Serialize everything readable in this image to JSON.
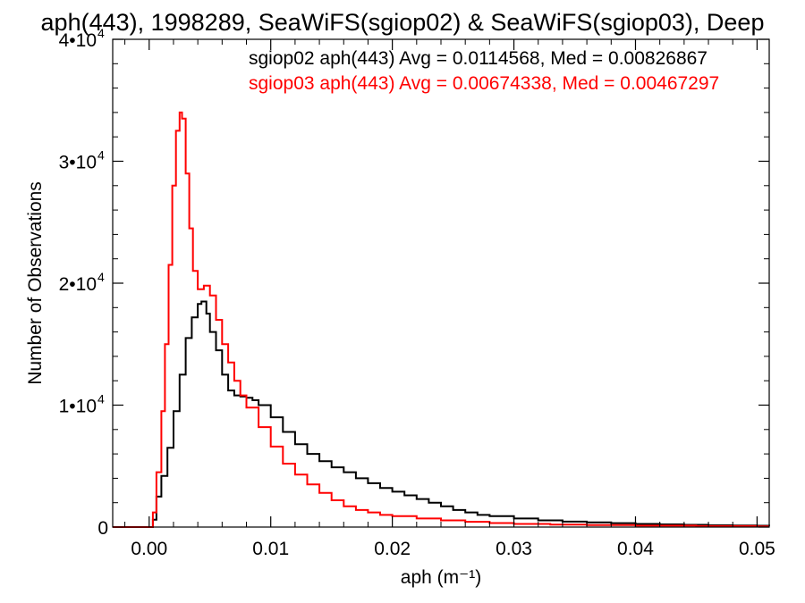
{
  "chart_data": {
    "type": "line",
    "title": "aph(443), 1998289, SeaWiFS(sgiop02) & SeaWiFS(sgiop03), Deep",
    "xlabel": "aph (m⁻¹)",
    "ylabel": "Number of Observations",
    "xlim": [
      -0.003,
      0.051
    ],
    "ylim": [
      0,
      40000
    ],
    "x_ticks": [
      {
        "value": 0.0,
        "label": "0.00"
      },
      {
        "value": 0.01,
        "label": "0.01"
      },
      {
        "value": 0.02,
        "label": "0.02"
      },
      {
        "value": 0.03,
        "label": "0.03"
      },
      {
        "value": 0.04,
        "label": "0.04"
      },
      {
        "value": 0.05,
        "label": "0.05"
      }
    ],
    "y_ticks": [
      {
        "value": 0,
        "label": "0",
        "exp": ""
      },
      {
        "value": 10000,
        "label": "1•10",
        "exp": "4"
      },
      {
        "value": 20000,
        "label": "2•10",
        "exp": "4"
      },
      {
        "value": 30000,
        "label": "3•10",
        "exp": "4"
      },
      {
        "value": 40000,
        "label": "4•10",
        "exp": "4"
      }
    ],
    "grid": false,
    "legend_position": "top-right",
    "series": [
      {
        "name": "sgiop02 aph(443) Avg = 0.0114568, Med = 0.00826867",
        "color": "#000000",
        "points": [
          [
            -0.003,
            0
          ],
          [
            0.0,
            0
          ],
          [
            0.0003,
            600
          ],
          [
            0.0006,
            2500
          ],
          [
            0.001,
            4200
          ],
          [
            0.0015,
            6500
          ],
          [
            0.002,
            9500
          ],
          [
            0.0025,
            12500
          ],
          [
            0.003,
            15500
          ],
          [
            0.0035,
            17200
          ],
          [
            0.004,
            18300
          ],
          [
            0.0043,
            18500
          ],
          [
            0.0047,
            17500
          ],
          [
            0.005,
            16000
          ],
          [
            0.0055,
            14500
          ],
          [
            0.006,
            12500
          ],
          [
            0.0065,
            11200
          ],
          [
            0.007,
            10800
          ],
          [
            0.0075,
            10700
          ],
          [
            0.008,
            10600
          ],
          [
            0.0085,
            10400
          ],
          [
            0.009,
            10000
          ],
          [
            0.01,
            9000
          ],
          [
            0.011,
            7800
          ],
          [
            0.012,
            6800
          ],
          [
            0.013,
            6000
          ],
          [
            0.014,
            5400
          ],
          [
            0.015,
            4900
          ],
          [
            0.016,
            4500
          ],
          [
            0.017,
            4000
          ],
          [
            0.018,
            3600
          ],
          [
            0.019,
            3200
          ],
          [
            0.02,
            2900
          ],
          [
            0.021,
            2600
          ],
          [
            0.022,
            2300
          ],
          [
            0.023,
            2000
          ],
          [
            0.024,
            1700
          ],
          [
            0.025,
            1400
          ],
          [
            0.026,
            1200
          ],
          [
            0.027,
            1000
          ],
          [
            0.028,
            900
          ],
          [
            0.03,
            700
          ],
          [
            0.032,
            550
          ],
          [
            0.034,
            450
          ],
          [
            0.036,
            380
          ],
          [
            0.038,
            320
          ],
          [
            0.04,
            260
          ],
          [
            0.042,
            220
          ],
          [
            0.044,
            180
          ],
          [
            0.046,
            150
          ],
          [
            0.048,
            130
          ],
          [
            0.05,
            110
          ],
          [
            0.051,
            100
          ]
        ]
      },
      {
        "name": "sgiop03 aph(443) Avg = 0.00674338, Med = 0.00467297",
        "color": "#ff0000",
        "points": [
          [
            -0.003,
            0
          ],
          [
            0.0,
            0
          ],
          [
            0.0003,
            1200
          ],
          [
            0.0006,
            4500
          ],
          [
            0.001,
            9500
          ],
          [
            0.0013,
            15000
          ],
          [
            0.0016,
            21500
          ],
          [
            0.0019,
            28000
          ],
          [
            0.0022,
            32500
          ],
          [
            0.0025,
            34000
          ],
          [
            0.0027,
            33500
          ],
          [
            0.003,
            29000
          ],
          [
            0.0033,
            24500
          ],
          [
            0.0036,
            21000
          ],
          [
            0.004,
            19500
          ],
          [
            0.0045,
            19800
          ],
          [
            0.005,
            19000
          ],
          [
            0.0055,
            17000
          ],
          [
            0.006,
            15000
          ],
          [
            0.0065,
            13500
          ],
          [
            0.007,
            12000
          ],
          [
            0.0075,
            10800
          ],
          [
            0.008,
            9800
          ],
          [
            0.009,
            8200
          ],
          [
            0.01,
            6600
          ],
          [
            0.011,
            5200
          ],
          [
            0.012,
            4300
          ],
          [
            0.013,
            3500
          ],
          [
            0.014,
            2800
          ],
          [
            0.015,
            2200
          ],
          [
            0.016,
            1700
          ],
          [
            0.017,
            1400
          ],
          [
            0.018,
            1200
          ],
          [
            0.019,
            1000
          ],
          [
            0.02,
            900
          ],
          [
            0.022,
            700
          ],
          [
            0.024,
            550
          ],
          [
            0.026,
            430
          ],
          [
            0.028,
            330
          ],
          [
            0.03,
            260
          ],
          [
            0.033,
            200
          ],
          [
            0.036,
            160
          ],
          [
            0.04,
            120
          ],
          [
            0.045,
            80
          ],
          [
            0.05,
            60
          ],
          [
            0.051,
            55
          ]
        ]
      }
    ]
  }
}
